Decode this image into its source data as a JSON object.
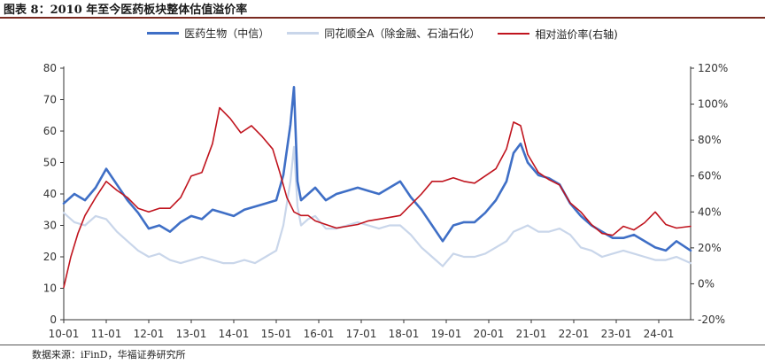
{
  "title": "图表 8：2010 年至今医药板块整体估值溢价率",
  "source": "数据来源：iFinD，华福证券研究所",
  "chart_data": {
    "type": "line",
    "title": "图表 8：2010 年至今医药板块整体估值溢价率",
    "xlabel": "",
    "ylabel": "",
    "x_ticks": [
      "10-01",
      "11-01",
      "12-01",
      "13-01",
      "14-01",
      "15-01",
      "16-01",
      "17-01",
      "18-01",
      "19-01",
      "20-01",
      "21-01",
      "22-01",
      "23-01",
      "24-01"
    ],
    "y_left_ticks": [
      "0",
      "10",
      "20",
      "30",
      "40",
      "50",
      "60",
      "70",
      "80"
    ],
    "y_right_ticks": [
      "-20%",
      "0%",
      "20%",
      "40%",
      "60%",
      "80%",
      "100%",
      "120%"
    ],
    "ylim_left": [
      0,
      80
    ],
    "ylim_right": [
      -20,
      120
    ],
    "x_range": [
      "2010-01",
      "2024-10"
    ],
    "grid": false,
    "legend_position": "top",
    "series": [
      {
        "name": "医药生物（中信）",
        "axis": "left",
        "color": "#3f6fc6",
        "x": [
          "2010-01",
          "2010-04",
          "2010-07",
          "2010-10",
          "2011-01",
          "2011-04",
          "2011-07",
          "2011-10",
          "2012-01",
          "2012-04",
          "2012-07",
          "2012-10",
          "2013-01",
          "2013-04",
          "2013-07",
          "2013-10",
          "2014-01",
          "2014-04",
          "2014-07",
          "2014-10",
          "2015-01",
          "2015-03",
          "2015-05",
          "2015-06",
          "2015-07",
          "2015-08",
          "2015-10",
          "2015-12",
          "2016-03",
          "2016-06",
          "2016-09",
          "2016-12",
          "2017-03",
          "2017-06",
          "2017-09",
          "2017-12",
          "2018-03",
          "2018-06",
          "2018-09",
          "2018-12",
          "2019-03",
          "2019-06",
          "2019-09",
          "2019-12",
          "2020-03",
          "2020-06",
          "2020-08",
          "2020-10",
          "2020-12",
          "2021-03",
          "2021-06",
          "2021-09",
          "2021-12",
          "2022-03",
          "2022-06",
          "2022-09",
          "2022-12",
          "2023-03",
          "2023-06",
          "2023-09",
          "2023-12",
          "2024-03",
          "2024-06",
          "2024-10"
        ],
        "values": [
          37,
          40,
          38,
          42,
          48,
          43,
          38,
          34,
          29,
          30,
          28,
          31,
          33,
          32,
          35,
          34,
          33,
          35,
          36,
          37,
          38,
          46,
          62,
          74,
          44,
          38,
          40,
          42,
          38,
          40,
          41,
          42,
          41,
          40,
          42,
          44,
          39,
          35,
          30,
          25,
          30,
          31,
          31,
          34,
          38,
          44,
          53,
          56,
          50,
          46,
          45,
          43,
          37,
          33,
          30,
          28,
          26,
          26,
          27,
          25,
          23,
          22,
          25,
          22
        ]
      },
      {
        "name": "同花顺全A（除金融、石油石化）",
        "axis": "left",
        "color": "#c9d6ea",
        "x": [
          "2010-01",
          "2010-04",
          "2010-07",
          "2010-10",
          "2011-01",
          "2011-04",
          "2011-07",
          "2011-10",
          "2012-01",
          "2012-04",
          "2012-07",
          "2012-10",
          "2013-01",
          "2013-04",
          "2013-07",
          "2013-10",
          "2014-01",
          "2014-04",
          "2014-07",
          "2014-10",
          "2015-01",
          "2015-03",
          "2015-05",
          "2015-06",
          "2015-07",
          "2015-08",
          "2015-10",
          "2015-12",
          "2016-03",
          "2016-06",
          "2016-09",
          "2016-12",
          "2017-03",
          "2017-06",
          "2017-09",
          "2017-12",
          "2018-03",
          "2018-06",
          "2018-09",
          "2018-12",
          "2019-03",
          "2019-06",
          "2019-09",
          "2019-12",
          "2020-03",
          "2020-06",
          "2020-08",
          "2020-10",
          "2020-12",
          "2021-03",
          "2021-06",
          "2021-09",
          "2021-12",
          "2022-03",
          "2022-06",
          "2022-09",
          "2022-12",
          "2023-03",
          "2023-06",
          "2023-09",
          "2023-12",
          "2024-03",
          "2024-06",
          "2024-10"
        ],
        "values": [
          34,
          31,
          30,
          33,
          32,
          28,
          25,
          22,
          20,
          21,
          19,
          18,
          19,
          20,
          19,
          18,
          18,
          19,
          18,
          20,
          22,
          30,
          44,
          55,
          36,
          30,
          32,
          33,
          29,
          29,
          30,
          31,
          30,
          29,
          30,
          30,
          27,
          23,
          20,
          17,
          21,
          20,
          20,
          21,
          23,
          25,
          28,
          29,
          30,
          28,
          28,
          29,
          27,
          23,
          22,
          20,
          21,
          22,
          21,
          20,
          19,
          19,
          20,
          18
        ]
      },
      {
        "name": "相对溢价率(右轴)",
        "axis": "right",
        "color": "#c0141e",
        "x": [
          "2010-01",
          "2010-03",
          "2010-05",
          "2010-07",
          "2010-10",
          "2011-01",
          "2011-04",
          "2011-07",
          "2011-10",
          "2012-01",
          "2012-04",
          "2012-07",
          "2012-10",
          "2013-01",
          "2013-04",
          "2013-07",
          "2013-09",
          "2013-12",
          "2014-03",
          "2014-06",
          "2014-09",
          "2014-12",
          "2015-02",
          "2015-04",
          "2015-06",
          "2015-08",
          "2015-10",
          "2015-12",
          "2016-03",
          "2016-06",
          "2016-09",
          "2016-12",
          "2017-03",
          "2017-06",
          "2017-09",
          "2017-12",
          "2018-03",
          "2018-06",
          "2018-09",
          "2018-12",
          "2019-03",
          "2019-06",
          "2019-09",
          "2019-12",
          "2020-03",
          "2020-06",
          "2020-08",
          "2020-10",
          "2020-12",
          "2021-03",
          "2021-06",
          "2021-09",
          "2021-12",
          "2022-03",
          "2022-06",
          "2022-09",
          "2022-12",
          "2023-03",
          "2023-06",
          "2023-09",
          "2023-12",
          "2024-03",
          "2024-06",
          "2024-10"
        ],
        "values": [
          -2,
          15,
          28,
          38,
          48,
          57,
          52,
          48,
          42,
          40,
          42,
          42,
          48,
          60,
          62,
          78,
          98,
          92,
          84,
          88,
          82,
          75,
          62,
          48,
          40,
          38,
          38,
          35,
          33,
          31,
          32,
          33,
          35,
          36,
          37,
          38,
          44,
          50,
          57,
          57,
          59,
          57,
          56,
          60,
          64,
          75,
          90,
          88,
          72,
          62,
          58,
          55,
          45,
          40,
          33,
          28,
          27,
          32,
          30,
          34,
          40,
          33,
          31,
          32
        ]
      }
    ]
  }
}
